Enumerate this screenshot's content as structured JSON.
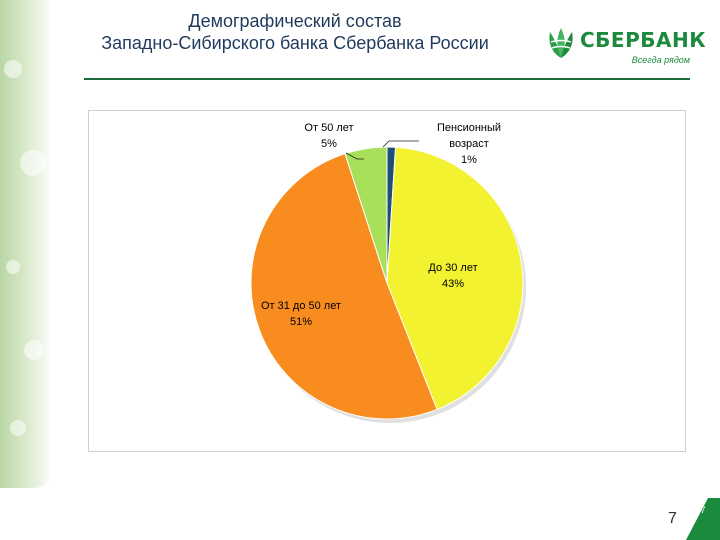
{
  "slide": {
    "title_line1": "Демографический состав",
    "title_line2": "Западно-Сибирского банка Сбербанка России",
    "logo_text": "СБЕРБАНК",
    "logo_slogan": "Всегда рядом",
    "page_number": "7",
    "page_badge": "7",
    "colors": {
      "brand_green": "#1b8a3c",
      "title": "#1f3a5c"
    }
  },
  "chart_data": {
    "type": "pie",
    "title": "",
    "start": "12 o'clock, clockwise",
    "slices": [
      {
        "label_line1": "Пенсионный",
        "label_line2": "возраст",
        "label_line3": "1%",
        "value": 1,
        "color": "#1f4e79"
      },
      {
        "label_line1": "До 30 лет",
        "label_line2": "43%",
        "value": 43,
        "color": "#f2f230"
      },
      {
        "label_line1": "От 31 до 50 лет",
        "label_line2": "51%",
        "value": 51,
        "color": "#f98c1f"
      },
      {
        "label_line1": "От 50 лет",
        "label_line2": "5%",
        "value": 5,
        "color": "#a8e05a"
      }
    ]
  }
}
